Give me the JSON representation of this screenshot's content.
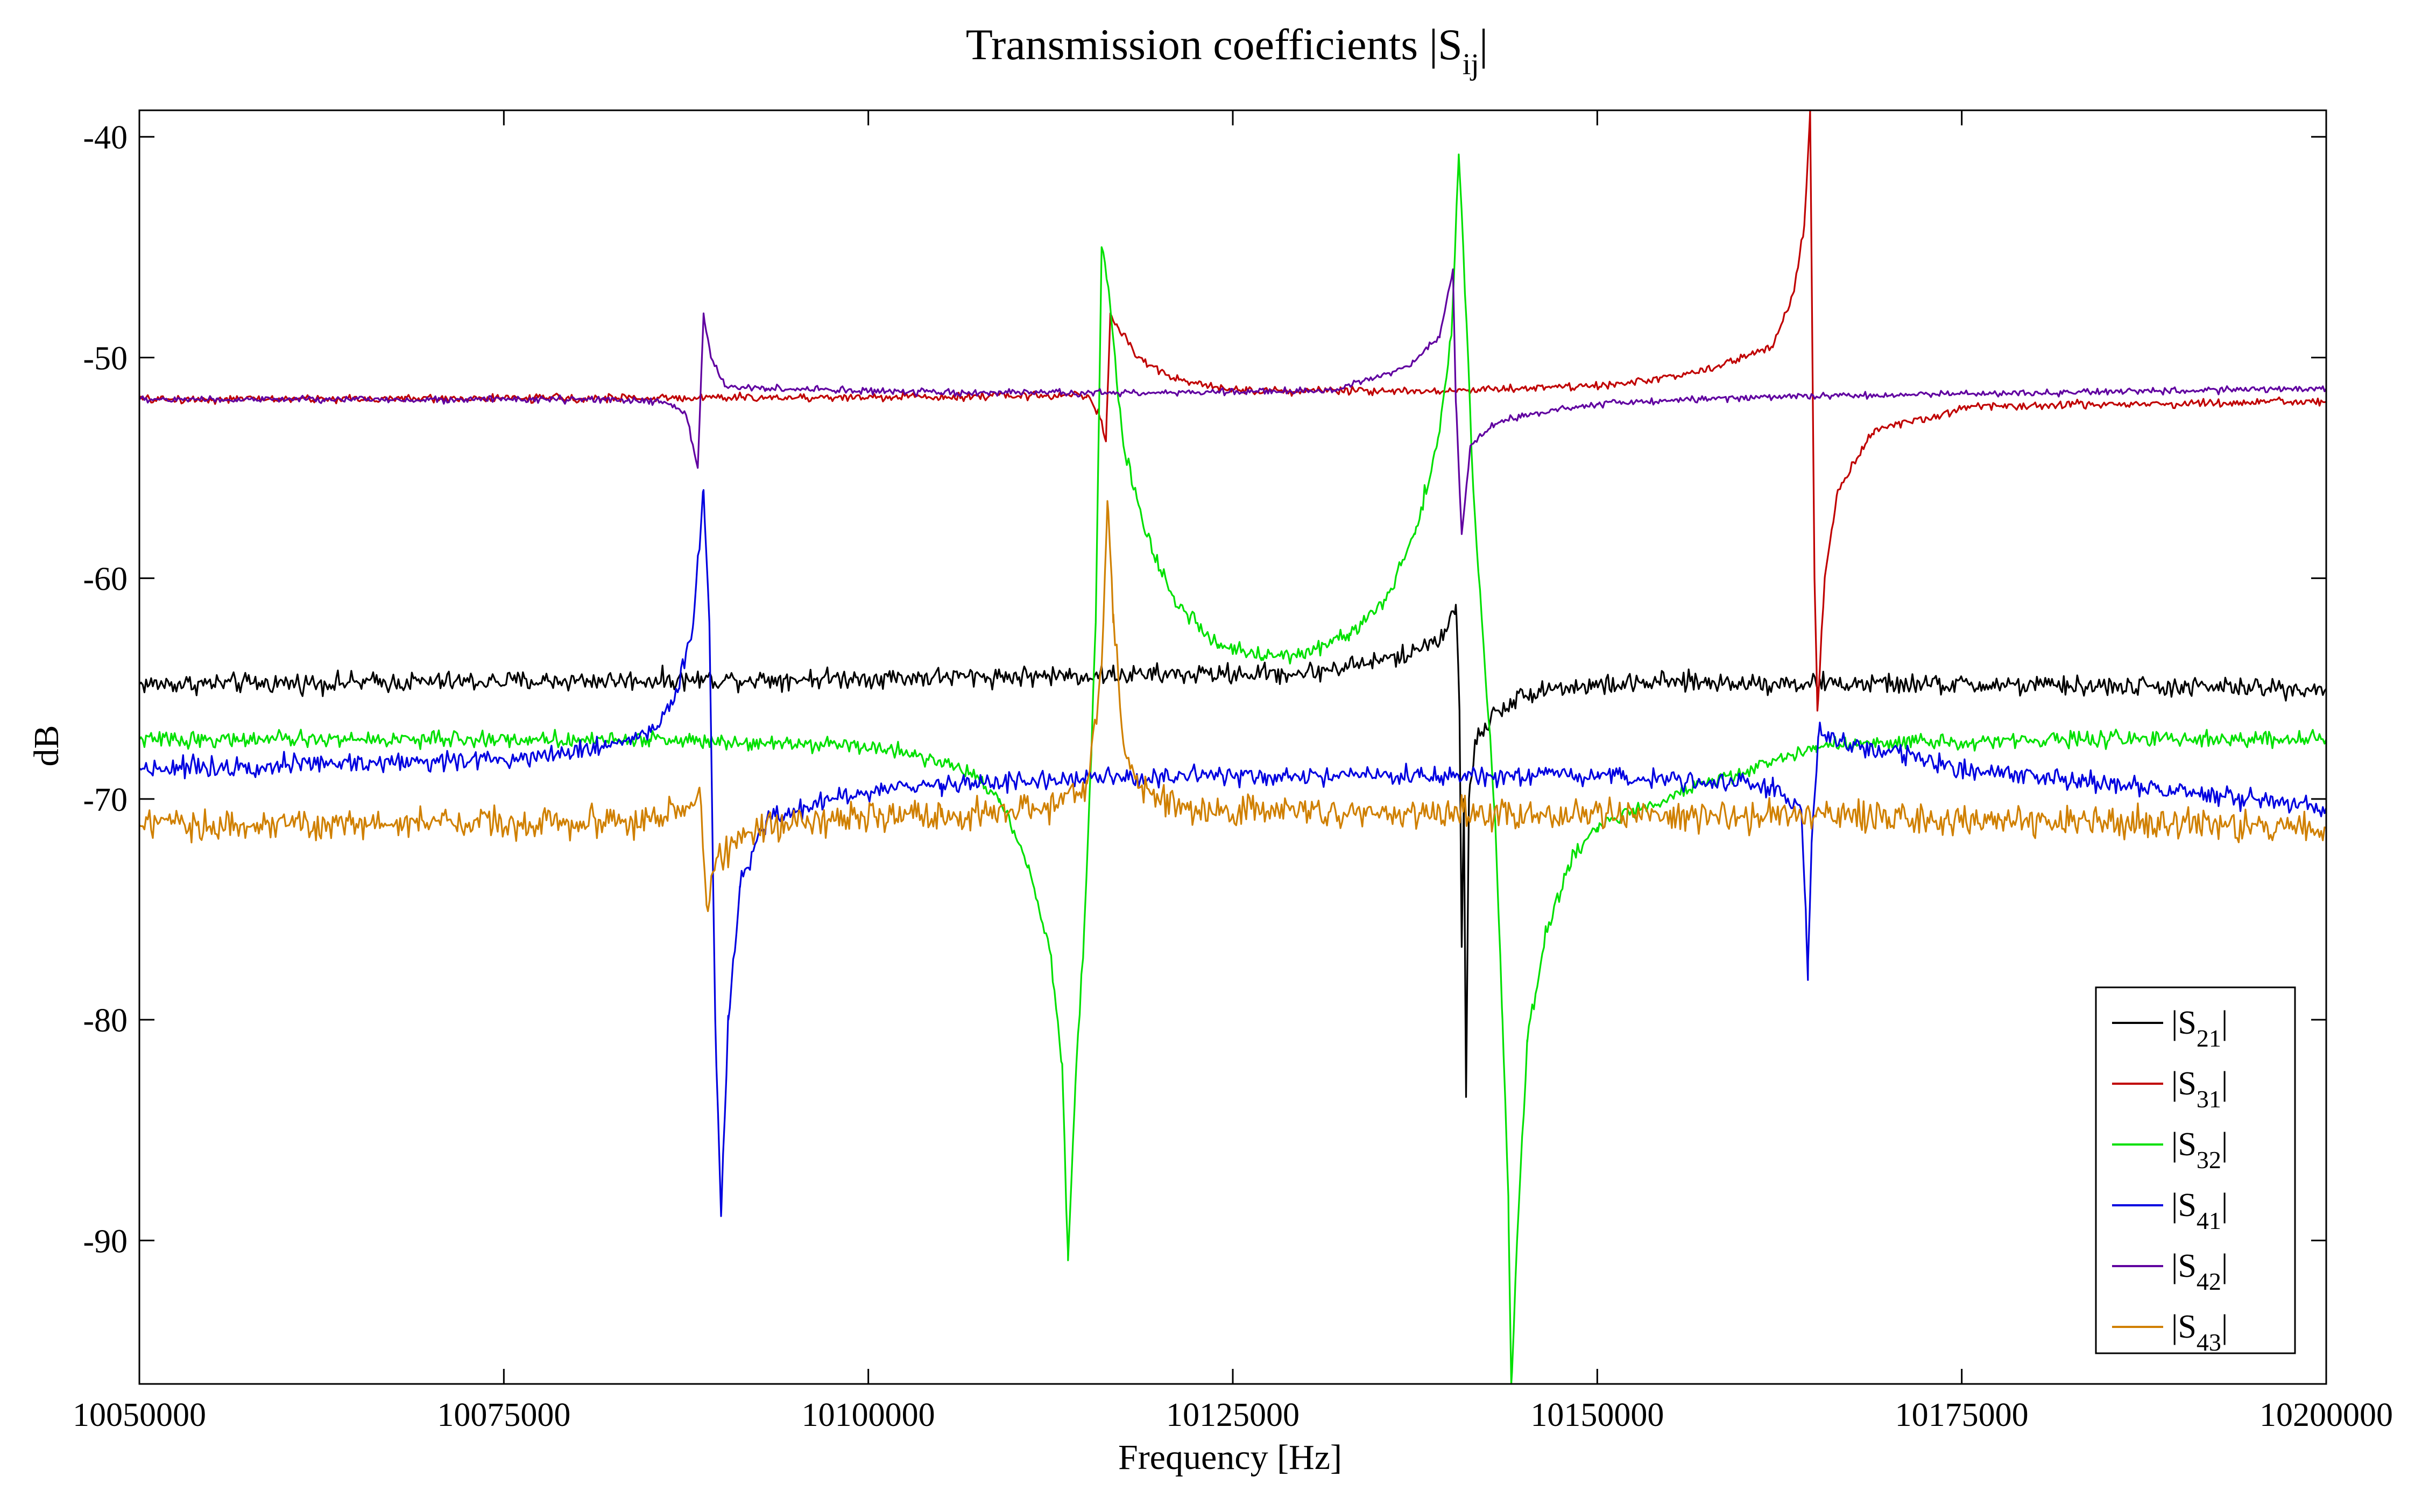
{
  "chart_data": {
    "type": "line",
    "title": "Transmission coefficients |S",
    "title_sub": "ij",
    "title_close": "|",
    "xlabel": "Frequency [Hz]",
    "ylabel": "dB",
    "xlim": [
      10050000,
      10200000
    ],
    "ylim": [
      -96.5,
      -38.8
    ],
    "xticks": [
      10050000,
      10075000,
      10100000,
      10125000,
      10150000,
      10175000,
      10200000
    ],
    "xtick_labels": [
      "10050000",
      "10075000",
      "10100000",
      "10125000",
      "10150000",
      "10175000",
      "10200000"
    ],
    "yticks": [
      -40,
      -50,
      -60,
      -70,
      -80,
      -90
    ],
    "ytick_labels": [
      "-40",
      "-50",
      "-60",
      "-70",
      "-80",
      "-90"
    ],
    "grid": false,
    "legend_position": "bottom-right",
    "series": [
      {
        "name": "|S21|",
        "sub": "21",
        "color": "#000000",
        "noise": 0.45,
        "points": [
          [
            10050000,
            -64.8
          ],
          [
            10088000,
            -64.6
          ],
          [
            10115000,
            -64.4
          ],
          [
            10130000,
            -64.3
          ],
          [
            10137000,
            -63.5
          ],
          [
            10139500,
            -62.5
          ],
          [
            10140300,
            -61.2
          ],
          [
            10140550,
            -66
          ],
          [
            10140700,
            -76.7
          ],
          [
            10140850,
            -70
          ],
          [
            10141000,
            -83.5
          ],
          [
            10141200,
            -70
          ],
          [
            10141600,
            -67.5
          ],
          [
            10143000,
            -66
          ],
          [
            10146000,
            -65
          ],
          [
            10155000,
            -64.7
          ],
          [
            10200000,
            -65
          ]
        ]
      },
      {
        "name": "|S31|",
        "sub": "31",
        "color": "#c00000",
        "noise": 0.18,
        "points": [
          [
            10050000,
            -51.9
          ],
          [
            10100000,
            -51.8
          ],
          [
            10115000,
            -51.7
          ],
          [
            10115800,
            -52.5
          ],
          [
            10116300,
            -53.8
          ],
          [
            10116600,
            -48
          ],
          [
            10117100,
            -48.6
          ],
          [
            10118500,
            -50
          ],
          [
            10121000,
            -51
          ],
          [
            10126000,
            -51.5
          ],
          [
            10140000,
            -51.5
          ],
          [
            10152000,
            -51.2
          ],
          [
            10158000,
            -50.5
          ],
          [
            10162000,
            -49.5
          ],
          [
            10163500,
            -47
          ],
          [
            10164200,
            -44
          ],
          [
            10164600,
            -38.8
          ],
          [
            10164900,
            -60
          ],
          [
            10165100,
            -66
          ],
          [
            10165600,
            -60
          ],
          [
            10166500,
            -56
          ],
          [
            10169000,
            -53.3
          ],
          [
            10176000,
            -52.2
          ],
          [
            10200000,
            -52
          ]
        ]
      },
      {
        "name": "|S32|",
        "sub": "32",
        "color": "#00e000",
        "noise": 0.35,
        "points": [
          [
            10050000,
            -67.3
          ],
          [
            10085000,
            -67.3
          ],
          [
            10098000,
            -67.5
          ],
          [
            10103000,
            -67.9
          ],
          [
            10107000,
            -68.8
          ],
          [
            10109000,
            -70
          ],
          [
            10111000,
            -73
          ],
          [
            10112500,
            -77
          ],
          [
            10113300,
            -82
          ],
          [
            10113700,
            -90.9
          ],
          [
            10114200,
            -83
          ],
          [
            10114800,
            -76
          ],
          [
            10115300,
            -68
          ],
          [
            10115600,
            -62
          ],
          [
            10116000,
            -45
          ],
          [
            10116500,
            -47
          ],
          [
            10117500,
            -54
          ],
          [
            10119000,
            -58
          ],
          [
            10121000,
            -61
          ],
          [
            10124000,
            -63
          ],
          [
            10127000,
            -63.6
          ],
          [
            10130000,
            -63.4
          ],
          [
            10133000,
            -62.5
          ],
          [
            10135500,
            -61
          ],
          [
            10137500,
            -58
          ],
          [
            10139000,
            -54
          ],
          [
            10140000,
            -49
          ],
          [
            10140500,
            -40.8
          ],
          [
            10141000,
            -48
          ],
          [
            10141500,
            -56
          ],
          [
            10142200,
            -63
          ],
          [
            10143000,
            -71
          ],
          [
            10143500,
            -80
          ],
          [
            10143900,
            -88
          ],
          [
            10144100,
            -96.5
          ],
          [
            10144500,
            -90
          ],
          [
            10145200,
            -81
          ],
          [
            10146500,
            -76
          ],
          [
            10148000,
            -73
          ],
          [
            10150000,
            -71.3
          ],
          [
            10155000,
            -69.8
          ],
          [
            10160000,
            -68.8
          ],
          [
            10165000,
            -67.6
          ],
          [
            10180000,
            -67.3
          ],
          [
            10200000,
            -67.3
          ]
        ]
      },
      {
        "name": "|S41|",
        "sub": "41",
        "color": "#0000e0",
        "noise": 0.45,
        "points": [
          [
            10050000,
            -68.6
          ],
          [
            10075000,
            -68.2
          ],
          [
            10082000,
            -67.6
          ],
          [
            10085500,
            -66.8
          ],
          [
            10087000,
            -65
          ],
          [
            10088000,
            -62
          ],
          [
            10088700,
            -56
          ],
          [
            10089100,
            -62
          ],
          [
            10089500,
            -80
          ],
          [
            10089900,
            -88.9
          ],
          [
            10090400,
            -80
          ],
          [
            10091200,
            -74
          ],
          [
            10093000,
            -71
          ],
          [
            10097000,
            -70
          ],
          [
            10105000,
            -69.3
          ],
          [
            10120000,
            -69
          ],
          [
            10140000,
            -69
          ],
          [
            10150000,
            -69
          ],
          [
            10157000,
            -69.1
          ],
          [
            10162000,
            -69.4
          ],
          [
            10164000,
            -70.5
          ],
          [
            10164300,
            -75
          ],
          [
            10164450,
            -78.2
          ],
          [
            10164700,
            -72
          ],
          [
            10165200,
            -67
          ],
          [
            10167000,
            -67.5
          ],
          [
            10175000,
            -68.6
          ],
          [
            10200000,
            -70.4
          ]
        ]
      },
      {
        "name": "|S42|",
        "sub": "42",
        "color": "#6000a0",
        "noise": 0.15,
        "points": [
          [
            10050000,
            -51.9
          ],
          [
            10080000,
            -51.9
          ],
          [
            10086000,
            -52
          ],
          [
            10087500,
            -52.6
          ],
          [
            10088300,
            -55
          ],
          [
            10088700,
            -48
          ],
          [
            10089200,
            -50
          ],
          [
            10090200,
            -51.3
          ],
          [
            10093000,
            -51.4
          ],
          [
            10105000,
            -51.6
          ],
          [
            10120000,
            -51.6
          ],
          [
            10132000,
            -51.5
          ],
          [
            10137000,
            -50.4
          ],
          [
            10139200,
            -49
          ],
          [
            10140100,
            -46
          ],
          [
            10140300,
            -52
          ],
          [
            10140700,
            -58
          ],
          [
            10141300,
            -54
          ],
          [
            10142800,
            -53
          ],
          [
            10145000,
            -52.6
          ],
          [
            10150000,
            -52.1
          ],
          [
            10160000,
            -51.8
          ],
          [
            10180000,
            -51.6
          ],
          [
            10200000,
            -51.4
          ]
        ]
      },
      {
        "name": "|S43|",
        "sub": "43",
        "color": "#d08000",
        "noise": 0.7,
        "points": [
          [
            10050000,
            -71.2
          ],
          [
            10085000,
            -71
          ],
          [
            10088000,
            -70.3
          ],
          [
            10088400,
            -69.5
          ],
          [
            10088900,
            -74.8
          ],
          [
            10089500,
            -73
          ],
          [
            10091500,
            -71.5
          ],
          [
            10095000,
            -71
          ],
          [
            10105000,
            -70.8
          ],
          [
            10113000,
            -70.4
          ],
          [
            10115000,
            -69.3
          ],
          [
            10116000,
            -64
          ],
          [
            10116400,
            -56.5
          ],
          [
            10116800,
            -62
          ],
          [
            10117500,
            -67.5
          ],
          [
            10118500,
            -69.5
          ],
          [
            10122000,
            -70.5
          ],
          [
            10140000,
            -70.6
          ],
          [
            10165000,
            -70.8
          ],
          [
            10200000,
            -71.3
          ]
        ]
      }
    ]
  }
}
